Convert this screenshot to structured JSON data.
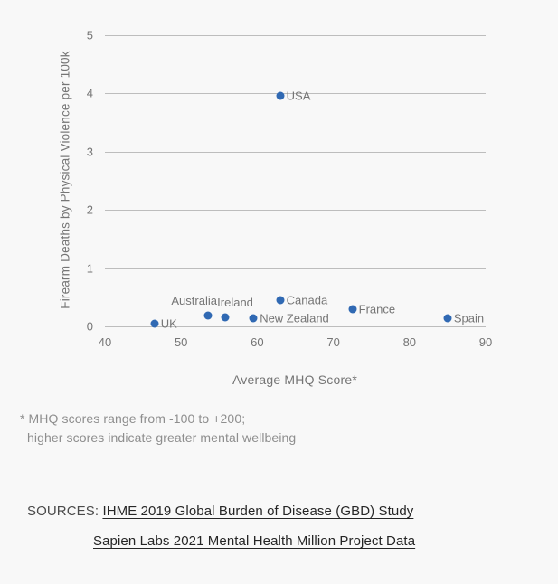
{
  "page": {
    "background": "#f8f8f8"
  },
  "chart_data": {
    "type": "scatter",
    "title": "",
    "xlabel": "Average MHQ Score*",
    "ylabel": "Firearm Deaths by Physical Violence per 100k",
    "xlim": [
      40,
      90
    ],
    "ylim": [
      0,
      5
    ],
    "x_ticks": [
      40,
      50,
      60,
      70,
      80,
      90
    ],
    "y_ticks": [
      0,
      1,
      2,
      3,
      4,
      5
    ],
    "grid": "horizontal-only",
    "legend": "none",
    "point_color": "#3069b3",
    "grid_color": "#bdbdbd",
    "tick_label_color": "#757575",
    "points": [
      {
        "label": "UK",
        "x": 46.5,
        "y": 0.04,
        "label_position": "right",
        "label_dx": 0
      },
      {
        "label": "Australia",
        "x": 53.5,
        "y": 0.18,
        "label_position": "above",
        "label_dx": -15
      },
      {
        "label": "Ireland",
        "x": 55.8,
        "y": 0.16,
        "label_position": "above",
        "label_dx": 11
      },
      {
        "label": "New Zealand",
        "x": 59.5,
        "y": 0.14,
        "label_position": "right",
        "label_dx": 0
      },
      {
        "label": "Canada",
        "x": 63,
        "y": 0.45,
        "label_position": "right",
        "label_dx": 0
      },
      {
        "label": "USA",
        "x": 63,
        "y": 3.96,
        "label_position": "right",
        "label_dx": 0
      },
      {
        "label": "France",
        "x": 72.5,
        "y": 0.3,
        "label_position": "right",
        "label_dx": 0
      },
      {
        "label": "Spain",
        "x": 85,
        "y": 0.14,
        "label_position": "right",
        "label_dx": 0
      }
    ]
  },
  "footnote": {
    "line1": "* MHQ scores range from -100 to +200;",
    "line2": "higher scores indicate greater mental wellbeing"
  },
  "sources": {
    "label": "SOURCES:",
    "links": [
      "IHME 2019 Global Burden of Disease (GBD) Study",
      "Sapien Labs 2021 Mental Health Million Project Data"
    ]
  }
}
